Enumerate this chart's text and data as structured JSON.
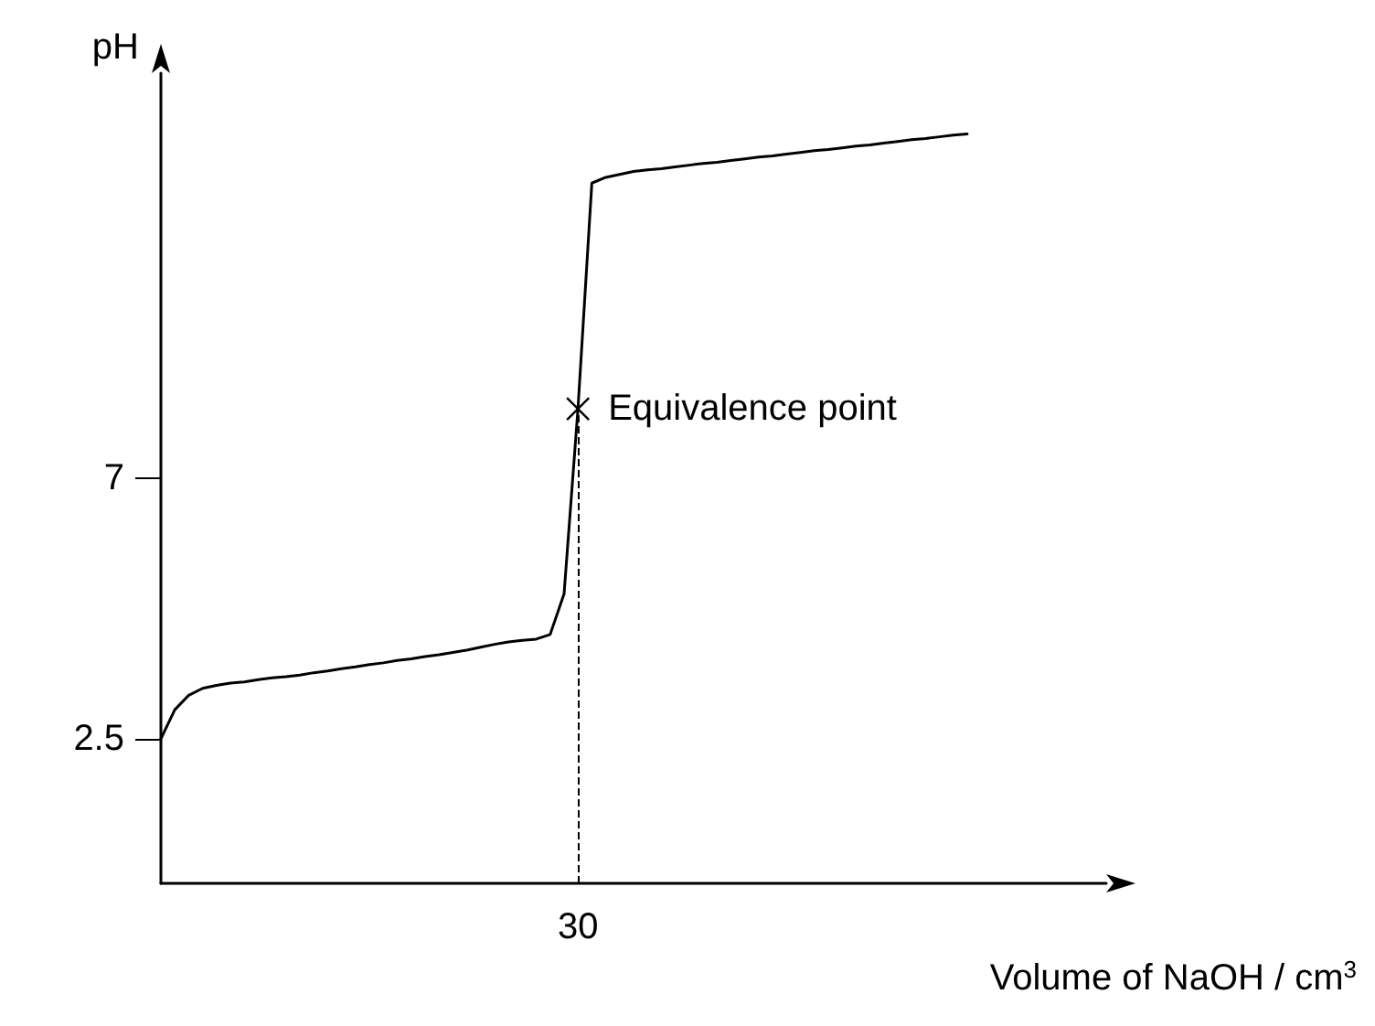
{
  "chart_data": {
    "type": "line",
    "xlabel": "Volume of NaOH / cm$^{3}$",
    "ylabel": "pH",
    "categories": [
      null,
      null,
      null,
      null,
      null,
      null,
      null,
      null,
      null,
      null,
      null,
      null,
      null,
      null,
      null,
      null,
      null,
      null,
      null,
      null,
      null,
      null,
      null,
      null,
      null,
      null,
      null,
      null,
      null,
      null,
      "30",
      null,
      null,
      null,
      null,
      null,
      null,
      null,
      null,
      null,
      null,
      null,
      null,
      null,
      null,
      null,
      null,
      null,
      null,
      null,
      null,
      null,
      null,
      null,
      null,
      null,
      null,
      null,
      null,
      null,
      null,
      null,
      null,
      null,
      null,
      null,
      null,
      null,
      null
    ],
    "series": [
      {
        "color": "#000000",
        "values": [
          2.5,
          3.0,
          3.25,
          3.37,
          3.42,
          3.46,
          3.48,
          3.52,
          3.55,
          3.57,
          3.6,
          3.64,
          3.67,
          3.71,
          3.74,
          3.78,
          3.81,
          3.85,
          3.88,
          3.92,
          3.95,
          3.99,
          4.03,
          4.08,
          4.13,
          4.17,
          4.2,
          4.22,
          4.3,
          5.0,
          8.2,
          12.1,
          12.2,
          12.25,
          12.3,
          12.33,
          12.35,
          12.38,
          12.41,
          12.44,
          12.46,
          12.49,
          12.52,
          12.55,
          12.57,
          12.6,
          12.63,
          12.66,
          12.68,
          12.71,
          12.74,
          12.76,
          12.79,
          12.82,
          12.85,
          12.87,
          12.9,
          12.93,
          12.95,
          null,
          null,
          null,
          null,
          null,
          null,
          null,
          null,
          null,
          null
        ]
      }
    ],
    "ylim": [
      0,
      14
    ],
    "yticks": [
      2.5,
      7
    ],
    "grid": false,
    "marker": "none",
    "line_style": "solid",
    "annotations": [
      {
        "text": "Equivalence point",
        "x": "30",
        "y": 8.2
      }
    ],
    "ref_lines": [
      {
        "axis": "x",
        "value": "30",
        "line_style": "dashed",
        "color": "#000000"
      }
    ]
  }
}
